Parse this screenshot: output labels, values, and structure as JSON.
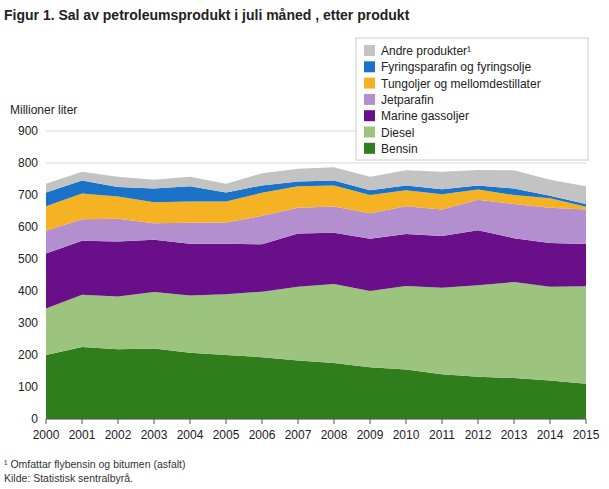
{
  "chart_data": {
    "type": "area",
    "stacked": true,
    "title": "Figur 1. Sal av petroleumsprodukt i juli måned , etter produkt",
    "y_label": "Millioner liter",
    "notes": [
      "¹ Omfattar flybensin og bitumen (asfalt)",
      "Kilde: Statistisk sentralbyrå."
    ],
    "x": [
      2000,
      2001,
      2002,
      2003,
      2004,
      2005,
      2006,
      2007,
      2008,
      2009,
      2010,
      2011,
      2012,
      2013,
      2014,
      2015
    ],
    "xlim": [
      2000,
      2015
    ],
    "xticks": [
      2000,
      2001,
      2002,
      2003,
      2004,
      2005,
      2006,
      2007,
      2008,
      2009,
      2010,
      2011,
      2012,
      2013,
      2014,
      2015
    ],
    "ylim": [
      0,
      900
    ],
    "yticks": [
      0,
      100,
      200,
      300,
      400,
      500,
      600,
      700,
      800,
      900
    ],
    "grid": true,
    "legend": "top-right",
    "series": [
      {
        "name": "Bensin",
        "color": "#2f7d1c",
        "values": [
          200,
          225,
          218,
          220,
          207,
          200,
          193,
          183,
          175,
          162,
          155,
          140,
          132,
          128,
          120,
          110
        ]
      },
      {
        "name": "Diesel",
        "color": "#9dc47e",
        "values": [
          145,
          163,
          165,
          177,
          179,
          190,
          205,
          230,
          247,
          238,
          261,
          270,
          286,
          300,
          293,
          305
        ]
      },
      {
        "name": "Marine gassoljer",
        "color": "#6a0f8a",
        "values": [
          172,
          169,
          172,
          163,
          162,
          158,
          148,
          167,
          160,
          163,
          162,
          162,
          172,
          137,
          137,
          132
        ]
      },
      {
        "name": "Jetparafin",
        "color": "#b48fd0",
        "values": [
          71,
          67,
          71,
          52,
          65,
          66,
          89,
          80,
          82,
          80,
          87,
          83,
          95,
          107,
          110,
          108
        ]
      },
      {
        "name": "Tungoljer og mellomdestillater",
        "color": "#f5b323",
        "values": [
          77,
          81,
          69,
          65,
          67,
          66,
          72,
          67,
          66,
          57,
          50,
          47,
          32,
          28,
          30,
          8
        ]
      },
      {
        "name": "Fyringsparafin og fyringsolje",
        "color": "#1a73c9",
        "values": [
          43,
          40,
          30,
          43,
          47,
          28,
          23,
          15,
          15,
          15,
          15,
          16,
          13,
          20,
          8,
          9
        ]
      },
      {
        "name": "Andre produkter¹",
        "color": "#c3c3c3",
        "values": [
          27,
          28,
          32,
          28,
          30,
          27,
          38,
          40,
          42,
          42,
          47,
          55,
          48,
          57,
          50,
          55
        ]
      }
    ]
  }
}
